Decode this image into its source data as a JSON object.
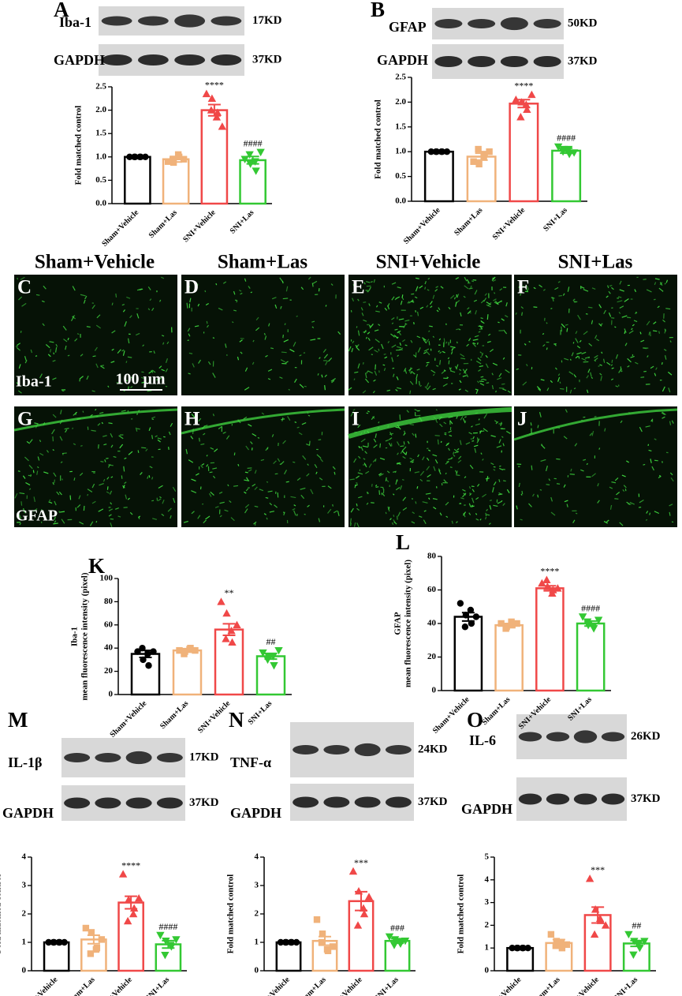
{
  "chart_data": [
    {
      "type": "bar",
      "panel": "A",
      "ylabel": [
        "Fold matched control"
      ],
      "categories": [
        "Sham+Vehicle",
        "Sham+Las",
        "SNI+Vehicle",
        "SNI+Las"
      ],
      "colors": [
        "#000000",
        "#f0b27a",
        "#f04848",
        "#33c833"
      ],
      "markers": [
        "circle",
        "square",
        "triangle-up",
        "triangle-down"
      ],
      "values": [
        1.0,
        0.95,
        2.0,
        0.93
      ],
      "errors": [
        0.01,
        0.06,
        0.12,
        0.08
      ],
      "points": [
        [
          1,
          1,
          1,
          1,
          1,
          1
        ],
        [
          0.9,
          0.88,
          1.0,
          0.93,
          1.05,
          0.95
        ],
        [
          2.35,
          2.25,
          1.95,
          2.0,
          1.85,
          1.65
        ],
        [
          0.95,
          0.85,
          0.7,
          1.05,
          0.9,
          1.1
        ]
      ],
      "annotations": [
        null,
        null,
        "****",
        "####"
      ],
      "ylim": [
        0,
        2.5
      ],
      "yticks": [
        {
          "value": 0,
          "label": "0.0"
        },
        {
          "value": 0.5,
          "label": "0.5"
        },
        {
          "value": 1,
          "label": "1.0"
        },
        {
          "value": 1.5,
          "label": "1.5"
        },
        {
          "value": 2,
          "label": "2.0"
        },
        {
          "value": 2.5,
          "label": "2.5"
        }
      ]
    },
    {
      "type": "bar",
      "panel": "B",
      "ylabel": [
        "Fold matched control"
      ],
      "categories": [
        "Sham+Vehicle",
        "Sham+Las",
        "SNI+Vehicle",
        "SNI+Las"
      ],
      "colors": [
        "#000000",
        "#f0b27a",
        "#f04848",
        "#33c833"
      ],
      "markers": [
        "circle",
        "square",
        "triangle-up",
        "triangle-down"
      ],
      "values": [
        1.0,
        0.9,
        1.97,
        1.02
      ],
      "errors": [
        0.01,
        0.07,
        0.08,
        0.05
      ],
      "points": [
        [
          1,
          1,
          1,
          1,
          1,
          1
        ],
        [
          0.8,
          0.75,
          0.95,
          1.05,
          0.9,
          1.0
        ],
        [
          2.05,
          2.0,
          1.85,
          1.7,
          1.95,
          2.15
        ],
        [
          1.1,
          1.05,
          0.95,
          1.0,
          1.05,
          0.98
        ]
      ],
      "annotations": [
        null,
        null,
        "****",
        "####"
      ],
      "ylim": [
        0,
        2.5
      ],
      "yticks": [
        {
          "value": 0,
          "label": "0.0"
        },
        {
          "value": 0.5,
          "label": "0.5"
        },
        {
          "value": 1,
          "label": "1.0"
        },
        {
          "value": 1.5,
          "label": "1.5"
        },
        {
          "value": 2,
          "label": "2.0"
        },
        {
          "value": 2.5,
          "label": "2.5"
        }
      ]
    },
    {
      "type": "bar",
      "panel": "K",
      "ylabel": [
        "Iba-1",
        "mean fluorescence intensity (pixel)"
      ],
      "categories": [
        "Sham+Vehicle",
        "Sham+Las",
        "SNI+Vehicle",
        "SNI+Las"
      ],
      "colors": [
        "#000000",
        "#f0b27a",
        "#f04848",
        "#33c833"
      ],
      "markers": [
        "circle",
        "square",
        "triangle-up",
        "triangle-down"
      ],
      "values": [
        35,
        38,
        56,
        33
      ],
      "errors": [
        3,
        1.5,
        5,
        2.5
      ],
      "points": [
        [
          37,
          30,
          25,
          40,
          35,
          37
        ],
        [
          38,
          37,
          40,
          35,
          39,
          38
        ],
        [
          80,
          70,
          45,
          48,
          55,
          60
        ],
        [
          36,
          33,
          25,
          30,
          33,
          38
        ]
      ],
      "annotations": [
        null,
        null,
        "**",
        "##"
      ],
      "ylim": [
        0,
        100
      ],
      "yticks": [
        0,
        20,
        40,
        60,
        80,
        100
      ]
    },
    {
      "type": "bar",
      "panel": "L",
      "ylabel": [
        "GFAP",
        "mean fluorescence intensity (pixel)"
      ],
      "categories": [
        "Sham+Vehicle",
        "Sham+Las",
        "SNI+Vehicle",
        "SNI+Las"
      ],
      "colors": [
        "#000000",
        "#f0b27a",
        "#f04848",
        "#33c833"
      ],
      "markers": [
        "circle",
        "square",
        "triangle-up",
        "triangle-down"
      ],
      "values": [
        44,
        39,
        61,
        40
      ],
      "errors": [
        2.5,
        1,
        1.5,
        1.5
      ],
      "points": [
        [
          52,
          45,
          40,
          38,
          48,
          44
        ],
        [
          40,
          38,
          39,
          37,
          41,
          40
        ],
        [
          64,
          62,
          60,
          66,
          58,
          61
        ],
        [
          44,
          39,
          37,
          41,
          38,
          42
        ]
      ],
      "annotations": [
        null,
        null,
        "****",
        "####"
      ],
      "ylim": [
        0,
        80
      ],
      "yticks": [
        0,
        20,
        40,
        60,
        80
      ]
    },
    {
      "type": "bar",
      "panel": "M",
      "ylabel": [
        "Fold matched control"
      ],
      "categories": [
        "Sham+Vehicle",
        "Sham+Las",
        "SNI+Vehicle",
        "SNI+Las"
      ],
      "colors": [
        "#000000",
        "#f0b27a",
        "#f04848",
        "#33c833"
      ],
      "markers": [
        "circle",
        "square",
        "triangle-up",
        "triangle-down"
      ],
      "values": [
        1.0,
        1.1,
        2.4,
        0.93
      ],
      "errors": [
        0.01,
        0.15,
        0.22,
        0.13
      ],
      "points": [
        [
          1,
          1,
          1,
          1,
          1,
          1
        ],
        [
          1.5,
          1.35,
          0.8,
          0.6,
          0.75,
          1.1
        ],
        [
          3.4,
          2.5,
          2.2,
          1.75,
          2.0,
          2.55
        ],
        [
          1.25,
          1.05,
          0.85,
          0.55,
          0.9,
          1.1
        ]
      ],
      "annotations": [
        null,
        null,
        "****",
        "####"
      ],
      "ylim": [
        0,
        4
      ],
      "yticks": [
        0,
        1,
        2,
        3,
        4
      ]
    },
    {
      "type": "bar",
      "panel": "N",
      "ylabel": [
        "Fold matched control"
      ],
      "categories": [
        "Sham+Vehicle",
        "Sham+Las",
        "SNI+Vehicle",
        "SNI+Las"
      ],
      "colors": [
        "#000000",
        "#f0b27a",
        "#f04848",
        "#33c833"
      ],
      "markers": [
        "circle",
        "square",
        "triangle-up",
        "triangle-down"
      ],
      "values": [
        1.0,
        1.05,
        2.45,
        1.05
      ],
      "errors": [
        0.01,
        0.15,
        0.33,
        0.08
      ],
      "points": [
        [
          1,
          1,
          1,
          1,
          1,
          1
        ],
        [
          1.8,
          1.3,
          0.7,
          1.0,
          0.75,
          0.85
        ],
        [
          3.5,
          2.8,
          2.0,
          1.6,
          2.2,
          2.6
        ],
        [
          1.2,
          1.1,
          0.95,
          0.9,
          1.0,
          1.05
        ]
      ],
      "annotations": [
        null,
        null,
        "***",
        "###"
      ],
      "ylim": [
        0,
        4
      ],
      "yticks": [
        0,
        1,
        2,
        3,
        4
      ]
    },
    {
      "type": "bar",
      "panel": "O",
      "ylabel": [
        "Fold matched control"
      ],
      "categories": [
        "Sham+Vehicle",
        "Sham+Las",
        "SNI+Vehicle",
        "SNI+Las"
      ],
      "colors": [
        "#000000",
        "#f0b27a",
        "#f04848",
        "#33c833"
      ],
      "markers": [
        "circle",
        "square",
        "triangle-up",
        "triangle-down"
      ],
      "values": [
        1.0,
        1.22,
        2.45,
        1.2
      ],
      "errors": [
        0.01,
        0.15,
        0.35,
        0.13
      ],
      "points": [
        [
          1,
          1,
          1,
          1,
          1,
          1
        ],
        [
          1.6,
          1.3,
          1.0,
          1.1,
          1.2,
          1.15
        ],
        [
          4.05,
          2.7,
          2.2,
          1.6,
          2.3,
          2.0
        ],
        [
          1.6,
          1.3,
          1.0,
          0.7,
          1.2,
          1.3
        ]
      ],
      "annotations": [
        null,
        null,
        "***",
        "##"
      ],
      "ylim": [
        0,
        5
      ],
      "yticks": [
        0,
        1,
        2,
        3,
        4,
        5
      ]
    }
  ],
  "blots": [
    {
      "target": "Iba-1",
      "target_kd": "17KD",
      "control": "GAPDH",
      "control_kd": "37KD"
    },
    {
      "target": "GFAP",
      "target_kd": "50KD",
      "control": "GAPDH",
      "control_kd": "37KD"
    },
    {
      "target": "IL-1β",
      "target_kd": "17KD",
      "control": "GAPDH",
      "control_kd": "37KD"
    },
    {
      "target": "TNF-α",
      "target_kd": "24KD",
      "control": "GAPDH",
      "control_kd": "37KD"
    },
    {
      "target": "IL-6",
      "target_kd": "26KD",
      "control": "GAPDH",
      "control_kd": "37KD"
    }
  ],
  "images": {
    "columns": [
      "Sham+Vehicle",
      "Sham+Las",
      "SNI+Vehicle",
      "SNI+Las"
    ],
    "panels": [
      "C",
      "D",
      "E",
      "F",
      "G",
      "H",
      "I",
      "J"
    ],
    "row_labels": [
      "Iba-1",
      "GFAP"
    ],
    "scale_bar": "100 μm"
  }
}
